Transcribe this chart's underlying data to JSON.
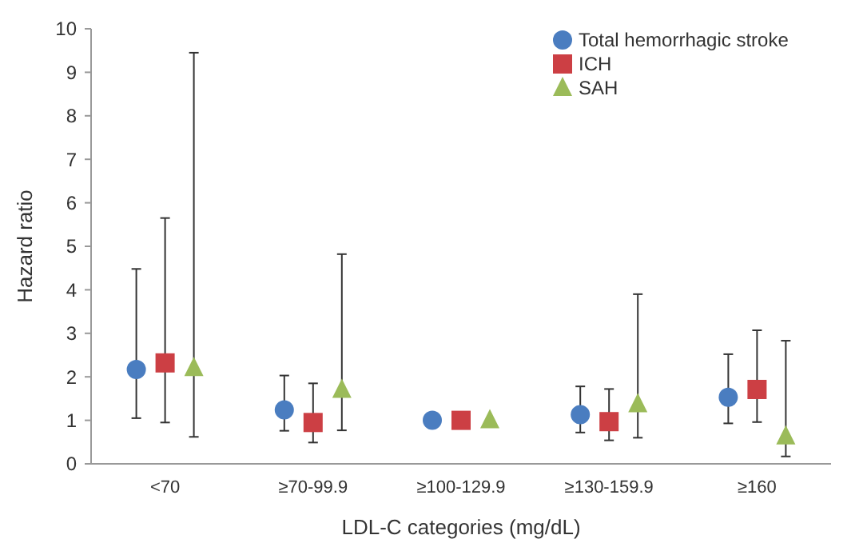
{
  "chart_data": {
    "type": "scatter",
    "xlabel": "LDL-C categories (mg/dL)",
    "ylabel": "Hazard ratio",
    "categories": [
      "<70",
      "≥70-99.9",
      "≥100-129.9",
      "≥130-159.9",
      "≥160"
    ],
    "ylim": [
      0,
      10
    ],
    "yticks": [
      0,
      1,
      2,
      3,
      4,
      5,
      6,
      7,
      8,
      9,
      10
    ],
    "grid": false,
    "legend": "top right",
    "series": [
      {
        "name": "Total hemorrhagic stroke",
        "color": "#4a7dc0",
        "marker": "circle",
        "values": [
          2.17,
          1.24,
          1.0,
          1.13,
          1.53
        ],
        "errors": [
          [
            1.05,
            4.48
          ],
          [
            0.76,
            2.03
          ],
          null,
          [
            0.72,
            1.78
          ],
          [
            0.93,
            2.52
          ]
        ]
      },
      {
        "name": "ICH",
        "color": "#cc3f44",
        "marker": "square",
        "values": [
          2.32,
          0.95,
          1.0,
          0.97,
          1.71
        ],
        "errors": [
          [
            0.95,
            5.65
          ],
          [
            0.49,
            1.85
          ],
          null,
          [
            0.54,
            1.72
          ],
          [
            0.96,
            3.07
          ]
        ]
      },
      {
        "name": "SAH",
        "color": "#9bbb59",
        "marker": "triangle",
        "values": [
          2.2,
          1.7,
          1.0,
          1.37,
          0.63
        ],
        "errors": [
          [
            0.62,
            9.45
          ],
          [
            0.77,
            4.82
          ],
          null,
          [
            0.6,
            3.9
          ],
          [
            0.17,
            2.83
          ]
        ]
      }
    ]
  }
}
